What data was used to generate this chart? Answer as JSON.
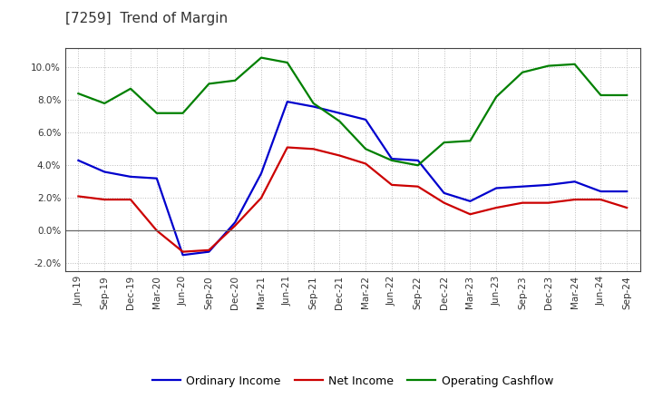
{
  "title": "[7259]  Trend of Margin",
  "x_labels": [
    "Jun-19",
    "Sep-19",
    "Dec-19",
    "Mar-20",
    "Jun-20",
    "Sep-20",
    "Dec-20",
    "Mar-21",
    "Jun-21",
    "Sep-21",
    "Dec-21",
    "Mar-22",
    "Jun-22",
    "Sep-22",
    "Dec-22",
    "Mar-23",
    "Jun-23",
    "Sep-23",
    "Dec-23",
    "Mar-24",
    "Jun-24",
    "Sep-24"
  ],
  "ordinary_income": [
    4.3,
    3.6,
    3.3,
    3.2,
    -1.5,
    -1.3,
    0.5,
    3.5,
    7.9,
    7.6,
    7.2,
    6.8,
    4.4,
    4.3,
    2.3,
    1.8,
    2.6,
    2.7,
    2.8,
    3.0,
    2.4,
    2.4
  ],
  "net_income": [
    2.1,
    1.9,
    1.9,
    0.0,
    -1.3,
    -1.2,
    0.3,
    2.0,
    5.1,
    5.0,
    4.6,
    4.1,
    2.8,
    2.7,
    1.7,
    1.0,
    1.4,
    1.7,
    1.7,
    1.9,
    1.9,
    1.4
  ],
  "operating_cf": [
    8.4,
    7.8,
    8.7,
    7.2,
    7.2,
    9.0,
    9.2,
    10.6,
    10.3,
    7.8,
    6.7,
    5.0,
    4.3,
    4.0,
    5.4,
    5.5,
    8.2,
    9.7,
    10.1,
    10.2,
    8.3,
    8.3
  ],
  "ylim": [
    -2.5,
    11.2
  ],
  "yticks": [
    -2.0,
    0.0,
    2.0,
    4.0,
    6.0,
    8.0,
    10.0
  ],
  "line_blue": "#0000cd",
  "line_red": "#cc0000",
  "line_green": "#008000",
  "line_width": 1.6,
  "bg_color": "#ffffff",
  "plot_bg_color": "#ffffff",
  "grid_color": "#bbbbbb",
  "title_color": "#333333",
  "legend_labels": [
    "Ordinary Income",
    "Net Income",
    "Operating Cashflow"
  ],
  "title_fontsize": 11,
  "tick_fontsize": 7.5,
  "legend_fontsize": 9
}
